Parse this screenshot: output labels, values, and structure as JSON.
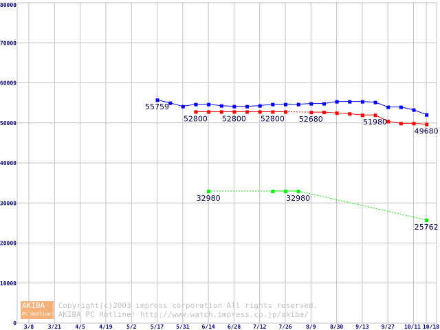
{
  "chart_data": {
    "type": "line",
    "title": "",
    "xlabel": "",
    "ylabel": "",
    "ylim": [
      0,
      80000
    ],
    "yticks": [
      0,
      10000,
      20000,
      30000,
      40000,
      50000,
      60000,
      70000,
      80000
    ],
    "ytick_labels": [
      "0",
      "10000",
      "20000",
      "30000",
      "40000",
      "50000",
      "60000",
      "70000",
      "80000"
    ],
    "x_unit": "week index (0 = 3/8)",
    "xlim": [
      0,
      31
    ],
    "xticks": [
      0,
      2,
      4,
      6,
      8,
      10,
      12,
      14,
      16,
      18,
      20,
      22,
      24,
      26,
      28,
      30,
      31
    ],
    "xtick_labels": [
      "3/8",
      "3/21",
      "4/5",
      "4/19",
      "5/2",
      "5/17",
      "5/31",
      "6/14",
      "6/28",
      "7/12",
      "7/26",
      "8/9",
      "8/30",
      "9/13",
      "9/27",
      "10/11",
      "10/18"
    ],
    "grid": true,
    "series": [
      {
        "name": "blue",
        "color": "#0000ff",
        "x": [
          10,
          11,
          12,
          13,
          14,
          15,
          16,
          17,
          18,
          19,
          20,
          21,
          22,
          23,
          24,
          25,
          26,
          27,
          28,
          29,
          30,
          31
        ],
        "y": [
          55759,
          55000,
          54140,
          54660,
          54660,
          54310,
          54140,
          54140,
          54310,
          54660,
          54660,
          54660,
          54830,
          54830,
          55340,
          55340,
          55340,
          55170,
          53970,
          53970,
          53280,
          52070
        ],
        "dotted_segments": [],
        "labels": [
          {
            "x": 10,
            "text": "55759"
          }
        ]
      },
      {
        "name": "red",
        "color": "#ff0000",
        "x": [
          13,
          14,
          15,
          16,
          17,
          18,
          19,
          20,
          22,
          23,
          24,
          25,
          26,
          27,
          28,
          29,
          30,
          31
        ],
        "y": [
          52800,
          52800,
          52800,
          52800,
          52800,
          52800,
          52800,
          52800,
          52680,
          52680,
          52500,
          52300,
          51980,
          51980,
          50400,
          49900,
          49900,
          49680
        ],
        "dotted_segments": [
          [
            20,
            22
          ]
        ],
        "labels": [
          {
            "x": 13,
            "text": "52800"
          },
          {
            "x": 16,
            "text": "52800"
          },
          {
            "x": 19,
            "text": "52800"
          },
          {
            "x": 22,
            "text": "52680"
          },
          {
            "x": 27,
            "text": "51980"
          },
          {
            "x": 31,
            "text": "49680"
          }
        ]
      },
      {
        "name": "green",
        "color": "#00ee00",
        "x": [
          14,
          19,
          20,
          21,
          31
        ],
        "y": [
          32980,
          32980,
          32980,
          32980,
          25762
        ],
        "dotted_segments": [
          [
            14,
            19
          ],
          [
            21,
            31
          ]
        ],
        "labels": [
          {
            "x": 14,
            "text": "32980"
          },
          {
            "x": 21,
            "text": "32980"
          },
          {
            "x": 31,
            "text": "25762"
          }
        ]
      }
    ]
  },
  "watermark": {
    "logo_top": "AKIBA",
    "logo_bottom": "PC Hotline!",
    "line1": "Copyright(c)2003 impress corporation All rights reserved.",
    "line2": "AKIBA PC Hotline!  http://www.watch.impress.co.jp/akiba/"
  }
}
